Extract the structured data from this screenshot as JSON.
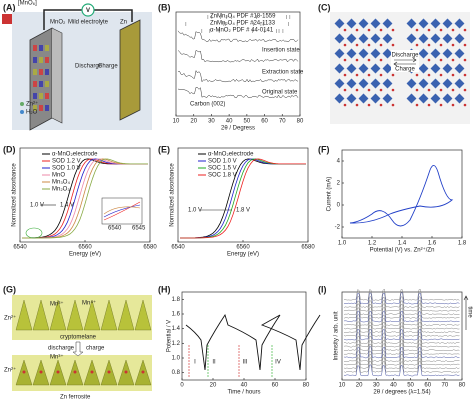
{
  "panels": [
    {
      "label": "(A)",
      "texts": [
        "[MnO₆]",
        "MnO₂",
        "Mild electrolyte",
        "Zn",
        "V",
        "Discharge",
        "Charge",
        "Zn²⁺",
        "H₂O"
      ]
    },
    {
      "label": "(B)",
      "texts": [
        "ZnMn₂O₄ PDF #18-1559",
        "ZnMn₂O₄ PDF #24-1133",
        "α-MnO₂ PDF # 44-0141",
        "Insertion state",
        "Extraction state",
        "Original state",
        "Carbon (002)"
      ],
      "xlabel": "2θ / Degress",
      "xticks": [
        "10",
        "20",
        "30",
        "40",
        "50",
        "60",
        "70",
        "80"
      ]
    },
    {
      "label": "(C)",
      "texts": [
        "Discharge",
        "Charge"
      ]
    },
    {
      "label": "(D)",
      "ylabel": "Normalized absorbance",
      "xlabel": "Energy (eV)",
      "xticks": [
        "6540",
        "6560",
        "6580"
      ],
      "legend": [
        "α-MnO₂electrode",
        "SOD 1.2 V",
        "SOD 1.0 V",
        "MnO",
        "Mn₃O₄",
        "Mn₂O₃"
      ],
      "texts": [
        "1.0 V",
        "1.4 V",
        "6540",
        "6545"
      ]
    },
    {
      "label": "(E)",
      "ylabel": "Normalized absorbance",
      "xlabel": "Energy (eV)",
      "xticks": [
        "6540",
        "6560",
        "6580"
      ],
      "legend": [
        "α-MnO₂electrode",
        "SOD 1.0 V",
        "SOC 1.5 V",
        "SOC 1.8 V"
      ],
      "texts": [
        "1.0 V",
        "1.8 V"
      ]
    },
    {
      "label": "(F)",
      "ylabel": "Current (mA)",
      "xlabel": "Potential (V) vs. Zn²⁺/Zn",
      "xticks": [
        "1.0",
        "1.2",
        "1.4",
        "1.6",
        "1.8"
      ],
      "yticks": [
        "-2",
        "0",
        "2",
        "4"
      ]
    },
    {
      "label": "(G)",
      "texts": [
        "Zn²⁺",
        "Mn³⁺",
        "Mn⁴⁺",
        "cryptomelane",
        "discharge",
        "charge",
        "Zn²⁺",
        "Mn³⁺",
        "Zn ferrosite"
      ]
    },
    {
      "label": "(H)",
      "ylabel": "Potential / V",
      "xlabel": "Time / hours",
      "xticks": [
        "0",
        "20",
        "40",
        "60",
        "80"
      ],
      "yticks": [
        "0.8",
        "1.0",
        "1.2",
        "1.4",
        "1.6",
        "1.8"
      ],
      "texts": [
        "I",
        "II",
        "III",
        "IV"
      ]
    },
    {
      "label": "(I)",
      "ylabel": "Intensity / arb. unit",
      "xlabel": "2θ / degrees (λ=1.54)",
      "xticks": [
        "10",
        "20",
        "30",
        "40",
        "50",
        "60",
        "70",
        "80"
      ],
      "texts": [
        "time"
      ]
    }
  ]
}
